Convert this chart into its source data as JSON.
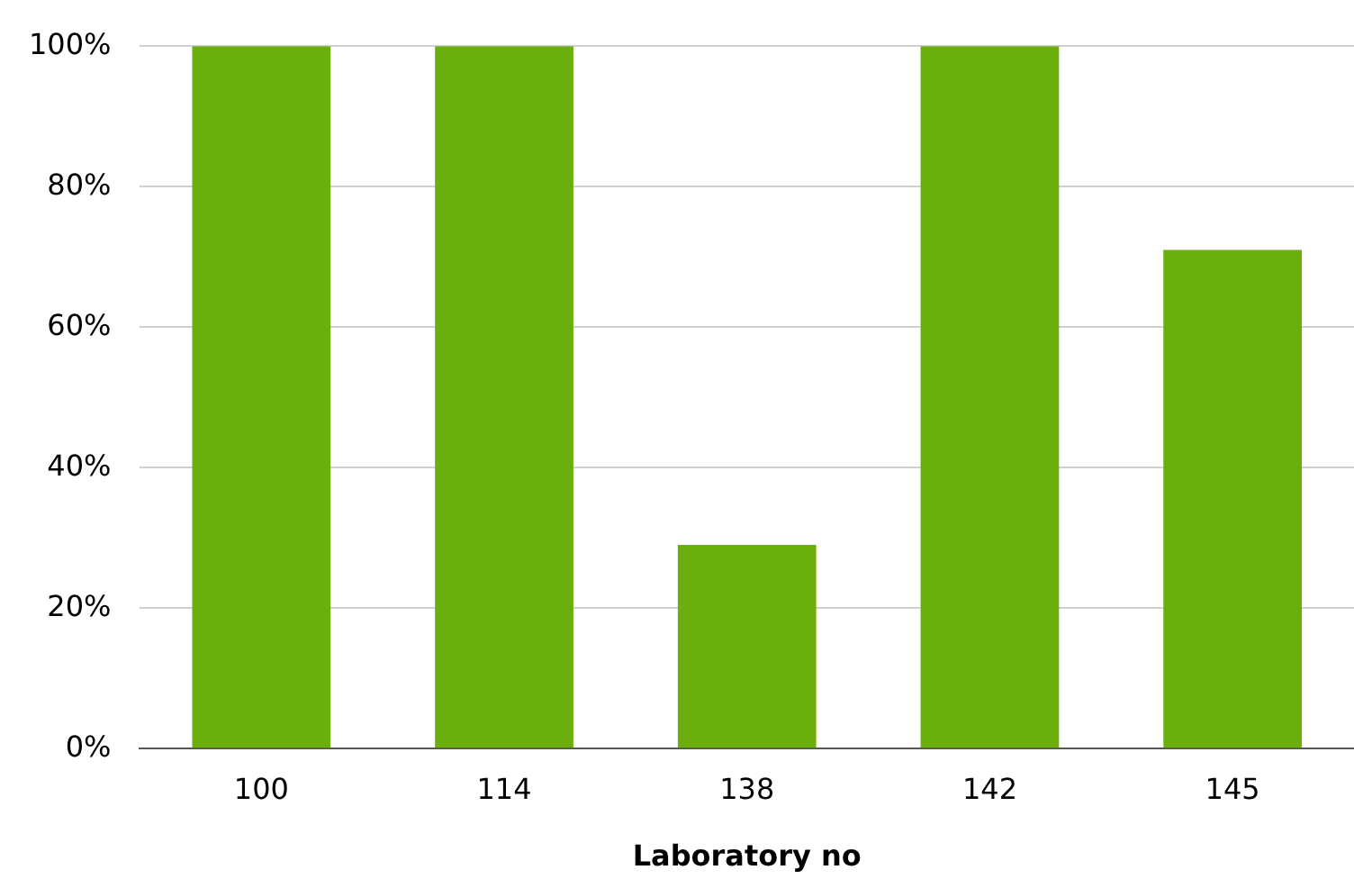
{
  "chart_data": {
    "type": "bar",
    "xlabel": "Laboratory no",
    "categories": [
      "100",
      "114",
      "138",
      "142",
      "145"
    ],
    "values": [
      100,
      100,
      29,
      100,
      71
    ],
    "color": "#6aaf0b",
    "ylim": [
      0,
      100
    ],
    "yticks": [
      {
        "value": 0,
        "label": "0%"
      },
      {
        "value": 20,
        "label": "20%"
      },
      {
        "value": 40,
        "label": "40%"
      },
      {
        "value": 60,
        "label": "60%"
      },
      {
        "value": 80,
        "label": "80%"
      },
      {
        "value": 100,
        "label": "100%"
      }
    ],
    "grid": "y",
    "legend": false
  }
}
